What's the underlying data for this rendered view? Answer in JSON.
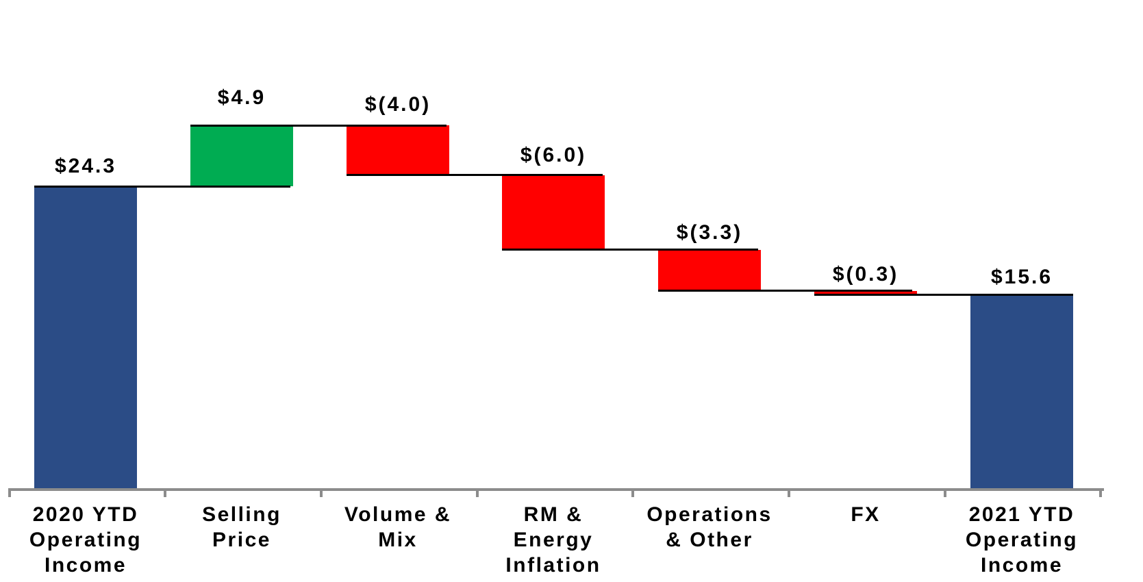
{
  "chart_data": {
    "type": "bar",
    "subtype": "waterfall",
    "title": "",
    "xlabel": "",
    "ylabel": "",
    "legend": "none",
    "grid": false,
    "y_axis_visible": false,
    "baseline_value": 0,
    "categories": [
      "2020 YTD Operating Income",
      "Selling Price",
      "Volume & Mix",
      "RM & Energy Inflation",
      "Operations & Other",
      "FX",
      "2021 YTD Operating Income"
    ],
    "steps": [
      {
        "label": "2020 YTD Operating Income",
        "label_lines": "2020 YTD\nOperating\nIncome",
        "value": 24.3,
        "display": "$24.3",
        "kind": "total",
        "color": "#2B4C86"
      },
      {
        "label": "Selling Price",
        "label_lines": "Selling\nPrice",
        "value": 4.9,
        "display": "$4.9",
        "kind": "increase",
        "color": "#00AC52"
      },
      {
        "label": "Volume & Mix",
        "label_lines": "Volume &\nMix",
        "value": -4.0,
        "display": "$(4.0)",
        "kind": "decrease",
        "color": "#FF0000"
      },
      {
        "label": "RM & Energy Inflation",
        "label_lines": "RM &\nEnergy\nInflation",
        "value": -6.0,
        "display": "$(6.0)",
        "kind": "decrease",
        "color": "#FF0000"
      },
      {
        "label": "Operations & Other",
        "label_lines": "Operations\n& Other",
        "value": -3.3,
        "display": "$(3.3)",
        "kind": "decrease",
        "color": "#FF0000"
      },
      {
        "label": "FX",
        "label_lines": "FX",
        "value": -0.3,
        "display": "$(0.3)",
        "kind": "decrease",
        "color": "#FF0000"
      },
      {
        "label": "2021 YTD Operating Income",
        "label_lines": "2021 YTD\nOperating\nIncome",
        "value": 15.6,
        "display": "$15.6",
        "kind": "total",
        "color": "#2B4C86"
      }
    ],
    "running_totals": [
      24.3,
      29.2,
      25.2,
      19.2,
      15.9,
      15.6
    ],
    "colors": {
      "total": "#2B4C86",
      "increase": "#00AC52",
      "decrease": "#FF0000",
      "connector": "#000000",
      "axis": "#8C8C8C",
      "label_text": "#000000",
      "background": "#FFFFFF"
    }
  }
}
